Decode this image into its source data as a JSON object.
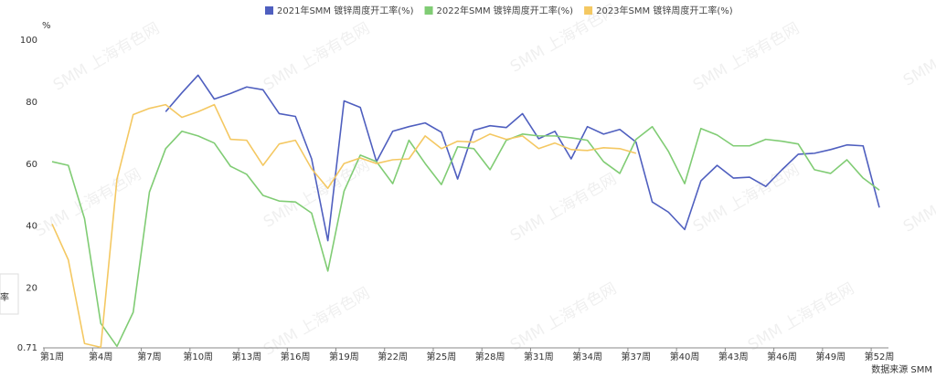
{
  "chart_data": {
    "type": "line",
    "y_unit": "%",
    "source": "数据来源 SMM",
    "watermark": "SMM 上海有色网",
    "side_label": "率",
    "categories": [
      "第1周",
      null,
      null,
      "第4周",
      null,
      null,
      "第7周",
      null,
      null,
      "第10周",
      null,
      null,
      "第13周",
      null,
      null,
      "第16周",
      null,
      null,
      "第19周",
      null,
      null,
      "第22周",
      null,
      null,
      "第25周",
      null,
      null,
      "第28周",
      null,
      null,
      "第31周",
      null,
      null,
      "第34周",
      null,
      null,
      "第37周",
      null,
      null,
      "第40周",
      null,
      null,
      "第43周",
      null,
      null,
      "第46周",
      null,
      null,
      "第49周",
      null,
      null,
      "第52周"
    ],
    "ylim": [
      0.71,
      100
    ],
    "yticks": [
      0.71,
      20,
      40,
      60,
      80,
      100
    ],
    "grid": false,
    "legend": "top",
    "series": [
      {
        "name": "2021年SMM 镀锌周度开工率(%)",
        "color": "#4f5fbf",
        "values": [
          null,
          null,
          null,
          null,
          null,
          null,
          null,
          76.9,
          83,
          88.7,
          81,
          82.8,
          84.9,
          84,
          76.3,
          75.4,
          61.7,
          35.3,
          80.4,
          78.3,
          60.8,
          70.6,
          72.1,
          73.3,
          70.3,
          55.2,
          70.9,
          72.4,
          71.8,
          76.3,
          68.2,
          70.6,
          61.7,
          72.1,
          69.7,
          71.2,
          67.1,
          47.8,
          44.5,
          38.9,
          54.6,
          59.6,
          55.5,
          55.8,
          52.8,
          58.2,
          63.2,
          63.5,
          64.7,
          66.2,
          65.9,
          46
        ]
      },
      {
        "name": "2022年SMM 镀锌周度开工率(%)",
        "color": "#80cc74",
        "values": [
          60.8,
          59.6,
          42.4,
          8.6,
          1.2,
          12.2,
          51,
          65,
          70.6,
          69.1,
          66.8,
          59.3,
          56.7,
          49.9,
          48.1,
          47.8,
          44.2,
          25.5,
          51.3,
          62.9,
          60.8,
          53.7,
          67.7,
          60.2,
          53.4,
          65.6,
          65,
          58.2,
          67.7,
          69.7,
          69.1,
          69.1,
          68.5,
          67.7,
          60.8,
          57,
          68,
          72.1,
          64.1,
          53.7,
          71.5,
          69.4,
          65.9,
          65.9,
          68,
          67.4,
          66.5,
          58.2,
          57,
          61.4,
          55.5,
          51.6
        ]
      },
      {
        "name": "2023年SMM 镀锌周度开工率(%)",
        "color": "#f4c862",
        "values": [
          40.7,
          29.1,
          2.1,
          0.9,
          55.2,
          76,
          78,
          79.2,
          75.1,
          76.9,
          79.2,
          68,
          67.7,
          59.6,
          66.5,
          67.7,
          58.5,
          52.2,
          60.2,
          62,
          60.2,
          61.4,
          61.7,
          69.1,
          65,
          67.4,
          67.1,
          69.7,
          68,
          69.1,
          65,
          66.8,
          64.7,
          64.4,
          65.3,
          65,
          63.5,
          null,
          null,
          null,
          null,
          null,
          null,
          null,
          null,
          null,
          null,
          null,
          null,
          null,
          null,
          null
        ]
      }
    ]
  }
}
